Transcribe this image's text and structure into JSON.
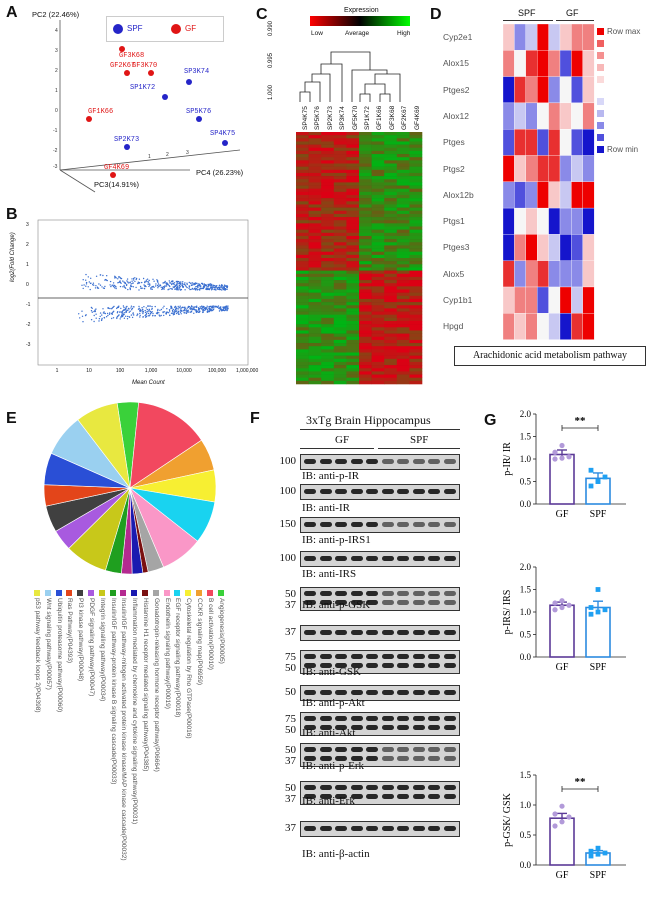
{
  "panels": {
    "A": "A",
    "B": "B",
    "C": "C",
    "D": "D",
    "E": "E",
    "F": "F",
    "G": "G"
  },
  "pca": {
    "axis_pc2": "PC2 (22.46%)",
    "axis_pc4": "PC4 (26.23%)",
    "axis_pc3": "PC3(14.91%)",
    "legend": [
      {
        "name": "SPF",
        "color": "#2525c8"
      },
      {
        "name": "GF",
        "color": "#e01515"
      }
    ],
    "points": [
      {
        "label": "GF3K68",
        "group": "GF"
      },
      {
        "label": "GF2K67",
        "group": "GF"
      },
      {
        "label": "GF3K70",
        "group": "GF"
      },
      {
        "label": "SP3K74",
        "group": "SPF"
      },
      {
        "label": "SP1K72",
        "group": "SPF"
      },
      {
        "label": "GF1K66",
        "group": "GF"
      },
      {
        "label": "SP5K76",
        "group": "SPF"
      },
      {
        "label": "SP4K75",
        "group": "SPF"
      },
      {
        "label": "SP2K73",
        "group": "SPF"
      },
      {
        "label": "GF4K69",
        "group": "GF"
      }
    ]
  },
  "ma_plot": {
    "ylabel": "log2(Fold Change)",
    "xlabel": "Mean Count",
    "xticks": [
      "1",
      "10",
      "100",
      "1,000",
      "10,000",
      "100,000",
      "1,000,000"
    ],
    "yticks": [
      "-3",
      "-2",
      "-1",
      "0",
      "1",
      "2",
      "3"
    ]
  },
  "heatmap_c": {
    "legend_title": "Expression",
    "legend_low": "Low",
    "legend_avg": "Average",
    "legend_high": "High",
    "dendro_ticks": [
      "0.990",
      "0.995",
      "1.000"
    ],
    "samples": [
      "SP4K75",
      "SP5K76",
      "SP2K73",
      "SP3K74",
      "GF5K70",
      "SP1K72",
      "GF1K66",
      "GF3K68",
      "GF2K67",
      "GF4K69"
    ]
  },
  "heatmap_d": {
    "groups": [
      "SPF",
      "GF"
    ],
    "genes": [
      "Cyp2e1",
      "Alox15",
      "Ptges2",
      "Alox12",
      "Ptges",
      "Ptgs2",
      "Alox12b",
      "Ptgs1",
      "Ptges3",
      "Alox5",
      "Cyp1b1",
      "Hpgd"
    ],
    "row_max": "Row max",
    "row_min": "Row min",
    "caption": "Arachidonic acid metabolism pathway"
  },
  "pie": {
    "slices": [
      {
        "label": "Angiogenesis(P00005)",
        "color": "#3ad13a"
      },
      {
        "label": "B cell activation(P00010)",
        "color": "#f2485f"
      },
      {
        "label": "CCKR signaling map(P06959)",
        "color": "#f0a030"
      },
      {
        "label": "Cytoskeletal regulation by Rho GTPase(P00016)",
        "color": "#f7ef32"
      },
      {
        "label": "EGF receptor signaling pathway(P00018)",
        "color": "#19d3f0"
      },
      {
        "label": "Endothelin signaling pathway(P00019)",
        "color": "#fa97c7"
      },
      {
        "label": "Gonadotropin-releasing hormone receptor pathway(P06664)",
        "color": "#a5a5a5"
      },
      {
        "label": "Histamine H1 receptor mediated signaling pathway(P04385)",
        "color": "#7a1010"
      },
      {
        "label": "Inflammation mediated by chemokine and cytokine signaling pathway(P00031)",
        "color": "#1a1ab0"
      },
      {
        "label": "Insulin/IGF pathway-mitogen activated protein kinase kinase/MAP kinase cascade(P00032)",
        "color": "#b42a90"
      },
      {
        "label": "Insulin/IGF pathway-protein kinase B signaling cascade(P00033)",
        "color": "#1f9f1f"
      },
      {
        "label": "Integrin signalling pathway(P00034)",
        "color": "#c8c81a"
      },
      {
        "label": "PDGF signaling pathway(P00047)",
        "color": "#a85adf"
      },
      {
        "label": "PI3 kinase pathway(P00048)",
        "color": "#404040"
      },
      {
        "label": "Ras Pathway(P04393)",
        "color": "#e3451a"
      },
      {
        "label": "Ubiquitin proteasome pathway(P00060)",
        "color": "#2a4fd6"
      },
      {
        "label": "Wnt signaling pathway(P00057)",
        "color": "#9ad0f0"
      },
      {
        "label": "p53 pathway feedback loops 2(P04398)",
        "color": "#e8e840"
      }
    ]
  },
  "western": {
    "title": "3xTg Brain Hippocampus",
    "groups": [
      "GF",
      "SPF"
    ],
    "blots": [
      {
        "mw": "100",
        "label": "IB: anti-p-IR"
      },
      {
        "mw": "100",
        "label": "IB: anti-IR"
      },
      {
        "mw": "150",
        "label": "IB: anti-p-IRS1"
      },
      {
        "mw": "100",
        "label": "IB: anti-IRS"
      },
      {
        "mw": "50",
        "mw2": "37",
        "label": "IB: anti-p-GSK"
      },
      {
        "mw": "37",
        "label": ""
      },
      {
        "mw": "75",
        "mw2": "50",
        "label": "IB: anti-GSK"
      },
      {
        "mw": "50",
        "label": "IB: anti-p-Akt"
      },
      {
        "mw": "75",
        "mw2": "50",
        "label": "IB: anti-Akt"
      },
      {
        "mw": "50",
        "mw2": "37",
        "label": "IB: anti-p-Erk"
      },
      {
        "mw": "50",
        "mw2": "37",
        "label": "IB: anti-Erk"
      },
      {
        "mw": "37",
        "label": "IB: anti-β-actin"
      }
    ]
  },
  "bar_charts": {
    "chart_data": [
      {
        "type": "bar",
        "categories": [
          "GF",
          "SPF"
        ],
        "values": [
          1.1,
          0.57
        ],
        "errors": [
          0.1,
          0.12
        ],
        "points": [
          [
            1.0,
            1.02,
            1.05,
            1.15,
            1.3
          ],
          [
            0.4,
            0.5,
            0.6,
            0.75,
            0.5
          ]
        ],
        "ylabel": "p-IR/ IR",
        "ylim": [
          0,
          2.0
        ],
        "yticks": [
          "0.0",
          "0.5",
          "1.0",
          "1.5",
          "2.0"
        ],
        "significance": "**"
      },
      {
        "type": "bar",
        "categories": [
          "GF",
          "SPF"
        ],
        "values": [
          1.15,
          1.1
        ],
        "errors": [
          0.07,
          0.14
        ],
        "points": [
          [
            1.05,
            1.1,
            1.15,
            1.2,
            1.25
          ],
          [
            0.95,
            1.0,
            1.05,
            1.1,
            1.5
          ]
        ],
        "ylabel": "p-IRS/ IRS",
        "ylim": [
          0,
          2.0
        ],
        "yticks": [
          "0.0",
          "0.5",
          "1.0",
          "1.5",
          "2.0"
        ],
        "significance": ""
      },
      {
        "type": "bar",
        "categories": [
          "GF",
          "SPF"
        ],
        "values": [
          0.78,
          0.2
        ],
        "errors": [
          0.08,
          0.04
        ],
        "points": [
          [
            0.65,
            0.72,
            0.8,
            0.85,
            0.98
          ],
          [
            0.15,
            0.18,
            0.2,
            0.23,
            0.28
          ]
        ],
        "ylabel": "p-GSK/ GSK",
        "ylim": [
          0,
          1.5
        ],
        "yticks": [
          "0.0",
          "0.5",
          "1.0",
          "1.5"
        ],
        "significance": "**"
      }
    ],
    "colors": {
      "GF": "#5b3a97",
      "SPF": "#2c8be0",
      "GF_points": "#b29ad9",
      "SPF_points": "#1fa0f2"
    }
  }
}
